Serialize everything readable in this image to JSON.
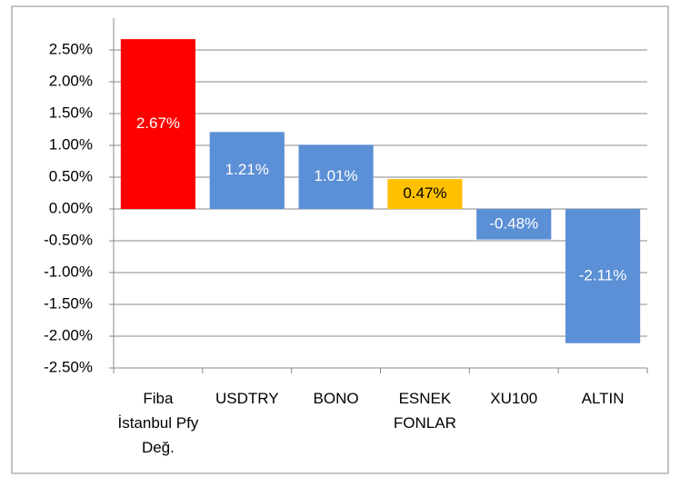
{
  "chart_data": {
    "type": "bar",
    "categories": [
      "Fiba İstanbul Pfy Değ.",
      "USDTRY",
      "BONO",
      "ESNEK FONLAR",
      "XU100",
      "ALTIN"
    ],
    "values": [
      2.67,
      1.21,
      1.01,
      0.47,
      -0.48,
      -2.11
    ],
    "value_labels": [
      "2.67%",
      "1.21%",
      "1.01%",
      "0.47%",
      "-0.48%",
      "-2.11%"
    ],
    "colors": [
      "#ff0000",
      "#5b8fd6",
      "#5b8fd6",
      "#ffc000",
      "#5b8fd6",
      "#5b8fd6"
    ],
    "ylim": [
      -2.5,
      3.0
    ],
    "yticks": [
      {
        "value": -2.5,
        "label": "-2.50%"
      },
      {
        "value": -2.0,
        "label": "-2.00%"
      },
      {
        "value": -1.5,
        "label": "-1.50%"
      },
      {
        "value": -1.0,
        "label": "-1.00%"
      },
      {
        "value": -0.5,
        "label": "-0.50%"
      },
      {
        "value": 0,
        "label": "0.00%"
      },
      {
        "value": 0.5,
        "label": "0.50%"
      },
      {
        "value": 1.0,
        "label": "1.00%"
      },
      {
        "value": 1.5,
        "label": "1.50%"
      },
      {
        "value": 2.0,
        "label": "2.00%"
      },
      {
        "value": 2.5,
        "label": "2.50%"
      }
    ],
    "grid": true
  }
}
